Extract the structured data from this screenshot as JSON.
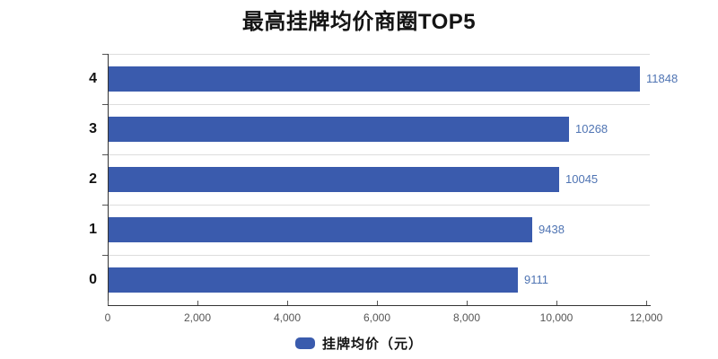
{
  "title": "最高挂牌均价商圈TOP5",
  "legend": {
    "label": "挂牌均价（元）"
  },
  "chart_data": {
    "type": "bar",
    "orientation": "horizontal",
    "title": "最高挂牌均价商圈TOP5",
    "categories": [
      "4",
      "3",
      "2",
      "1",
      "0"
    ],
    "series": [
      {
        "name": "挂牌均价（元）",
        "values": [
          11848,
          10268,
          10045,
          9438,
          9111
        ]
      }
    ],
    "value_labels": [
      "11848",
      "10268",
      "10045",
      "9438",
      "9111"
    ],
    "x_ticks": [
      0,
      2000,
      4000,
      6000,
      8000,
      10000,
      12000
    ],
    "x_tick_labels": [
      "0",
      "2,000",
      "4,000",
      "6,000",
      "8,000",
      "10,000",
      "12,000"
    ],
    "xlim": [
      0,
      12000
    ],
    "grid": "horizontal category separators only",
    "legend_position": "bottom-center",
    "value_labels_position": "right of bar end",
    "colors": {
      "bar": "#3a5bad",
      "value_label": "#4f74b3",
      "axis": "#333333",
      "tick": "#555555",
      "grid": "#dddddd",
      "tick_label": "#555555",
      "category_label": "#111111",
      "title": "#141414",
      "background": "#ffffff"
    }
  }
}
